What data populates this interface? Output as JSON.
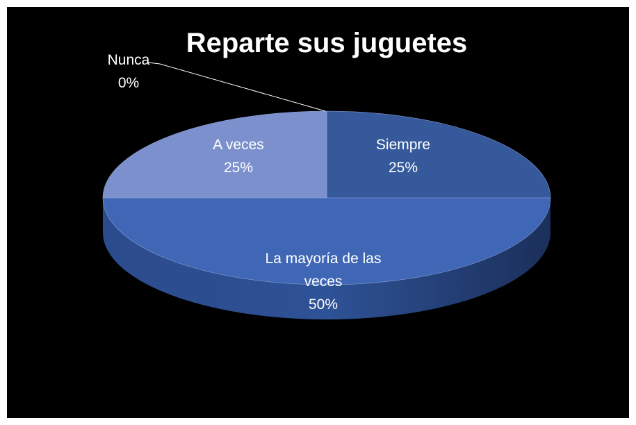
{
  "chart_data": {
    "type": "pie",
    "title": "Reparte sus juguetes",
    "categories": [
      "Siempre",
      "La mayoría de las veces",
      "A veces",
      "Nunca"
    ],
    "values": [
      25,
      50,
      25,
      0
    ],
    "value_labels": [
      "25%",
      "50%",
      "25%",
      "0%"
    ],
    "colors": [
      "#35599b",
      "#3f67b5",
      "#7b90cc",
      "#3a5fa8"
    ]
  }
}
